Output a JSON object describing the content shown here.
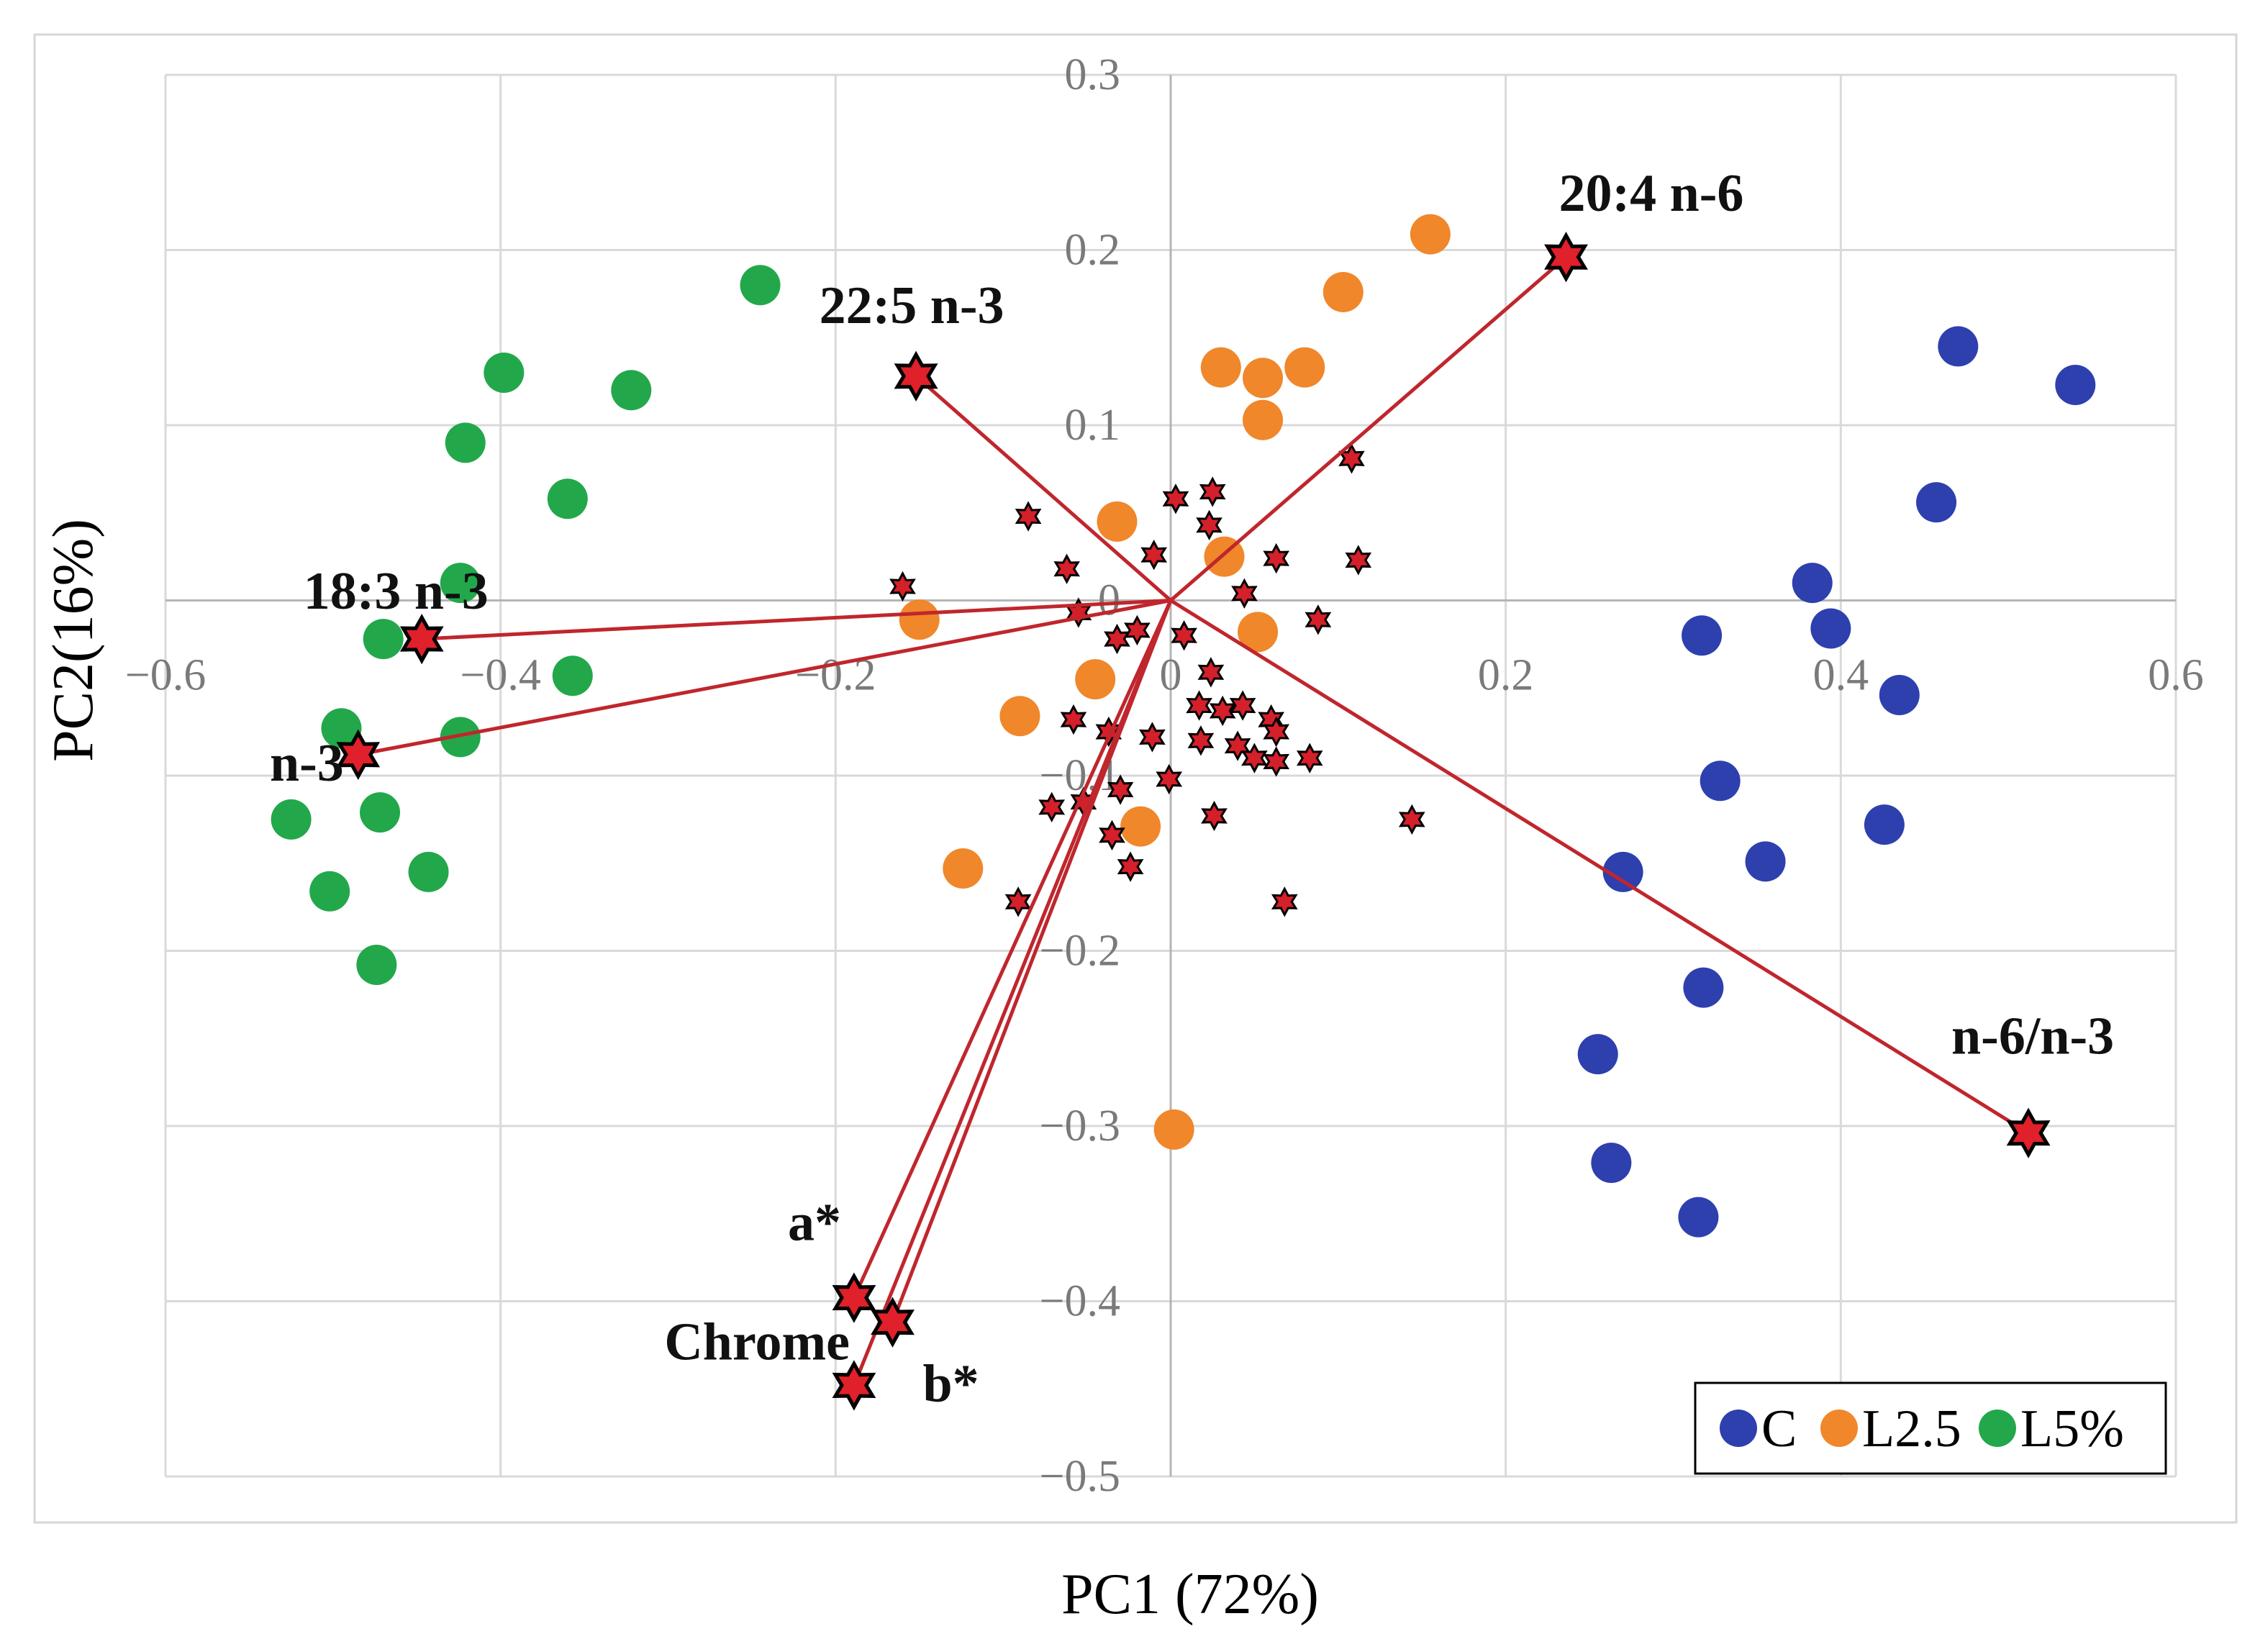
{
  "chart_data": {
    "type": "scatter",
    "subtype": "pca-biplot",
    "xlabel": "PC1 (72%)",
    "ylabel": "PC2(16%)",
    "xlim": [
      -0.6,
      0.6
    ],
    "ylim": [
      -0.5,
      0.3
    ],
    "x_ticks": [
      "−0.6",
      "−0.4",
      "−0.2",
      "0",
      "0.2",
      "0.4",
      "0.6"
    ],
    "y_ticks": [
      "0.3",
      "0.2",
      "0.1",
      "0",
      "−0.1",
      "−0.2",
      "−0.3",
      "−0.4",
      "−0.5"
    ],
    "grid": true,
    "legend_position": "bottom-right",
    "series": [
      {
        "name": "C",
        "color": "#2e3fae",
        "points": [
          [
            0.47,
            0.145
          ],
          [
            0.54,
            0.123
          ],
          [
            0.457,
            0.056
          ],
          [
            0.383,
            0.01
          ],
          [
            0.394,
            -0.016
          ],
          [
            0.317,
            -0.02
          ],
          [
            0.435,
            -0.054
          ],
          [
            0.328,
            -0.103
          ],
          [
            0.426,
            -0.128
          ],
          [
            0.355,
            -0.149
          ],
          [
            0.27,
            -0.155
          ],
          [
            0.318,
            -0.221
          ],
          [
            0.255,
            -0.259
          ],
          [
            0.263,
            -0.321
          ],
          [
            0.315,
            -0.352
          ]
        ]
      },
      {
        "name": "L2.5",
        "color": "#f0872b",
        "points": [
          [
            0.155,
            0.209
          ],
          [
            0.103,
            0.176
          ],
          [
            0.03,
            0.133
          ],
          [
            0.055,
            0.127
          ],
          [
            0.08,
            0.133
          ],
          [
            0.055,
            0.103
          ],
          [
            -0.032,
            0.045
          ],
          [
            0.032,
            0.025
          ],
          [
            -0.15,
            -0.011
          ],
          [
            0.052,
            -0.018
          ],
          [
            -0.045,
            -0.045
          ],
          [
            -0.09,
            -0.066
          ],
          [
            -0.018,
            -0.129
          ],
          [
            -0.124,
            -0.153
          ],
          [
            0.002,
            -0.302
          ]
        ]
      },
      {
        "name": "L5%",
        "color": "#22a84a",
        "points": [
          [
            -0.245,
            0.18
          ],
          [
            -0.398,
            0.13
          ],
          [
            -0.322,
            0.12
          ],
          [
            -0.421,
            0.09
          ],
          [
            -0.36,
            0.058
          ],
          [
            -0.424,
            0.01
          ],
          [
            -0.47,
            -0.022
          ],
          [
            -0.357,
            -0.043
          ],
          [
            -0.495,
            -0.073
          ],
          [
            -0.424,
            -0.078
          ],
          [
            -0.525,
            -0.125
          ],
          [
            -0.472,
            -0.121
          ],
          [
            -0.443,
            -0.155
          ],
          [
            -0.502,
            -0.166
          ],
          [
            -0.474,
            -0.208
          ]
        ]
      }
    ],
    "loadings": [
      {
        "label": "20:4 n-6",
        "x": 0.236,
        "y": 0.196
      },
      {
        "label": "22:5 n-3",
        "x": -0.152,
        "y": 0.128
      },
      {
        "label": "18:3 n-3",
        "x": -0.447,
        "y": -0.022
      },
      {
        "label": "n-3",
        "x": -0.485,
        "y": -0.088
      },
      {
        "label": "n-6/n-3",
        "x": 0.512,
        "y": -0.304
      },
      {
        "label": "a*",
        "x": -0.189,
        "y": -0.398
      },
      {
        "label": "Chrome",
        "x": -0.189,
        "y": -0.448
      },
      {
        "label": "b*",
        "x": -0.166,
        "y": -0.412
      }
    ],
    "minor_loadings": [
      [
        -0.16,
        0.008
      ],
      [
        -0.085,
        0.048
      ],
      [
        -0.062,
        0.018
      ],
      [
        -0.01,
        0.026
      ],
      [
        0.003,
        0.058
      ],
      [
        0.025,
        0.062
      ],
      [
        0.023,
        0.043
      ],
      [
        0.063,
        0.024
      ],
      [
        0.108,
        0.081
      ],
      [
        0.112,
        0.023
      ],
      [
        -0.055,
        -0.007
      ],
      [
        -0.032,
        -0.022
      ],
      [
        -0.02,
        -0.017
      ],
      [
        0.008,
        -0.02
      ],
      [
        0.044,
        0.004
      ],
      [
        0.088,
        -0.011
      ],
      [
        0.024,
        -0.041
      ],
      [
        0.017,
        -0.06
      ],
      [
        0.031,
        -0.063
      ],
      [
        0.043,
        -0.06
      ],
      [
        0.06,
        -0.068
      ],
      [
        -0.058,
        -0.068
      ],
      [
        -0.037,
        -0.075
      ],
      [
        -0.011,
        -0.078
      ],
      [
        -0.001,
        -0.102
      ],
      [
        0.018,
        -0.08
      ],
      [
        0.04,
        -0.083
      ],
      [
        0.063,
        -0.075
      ],
      [
        0.05,
        -0.09
      ],
      [
        0.063,
        -0.092
      ],
      [
        0.083,
        -0.09
      ],
      [
        0.144,
        -0.125
      ],
      [
        -0.03,
        -0.108
      ],
      [
        -0.052,
        -0.115
      ],
      [
        -0.071,
        -0.118
      ],
      [
        0.026,
        -0.123
      ],
      [
        -0.035,
        -0.134
      ],
      [
        -0.024,
        -0.152
      ],
      [
        -0.091,
        -0.172
      ],
      [
        0.068,
        -0.172
      ]
    ]
  }
}
